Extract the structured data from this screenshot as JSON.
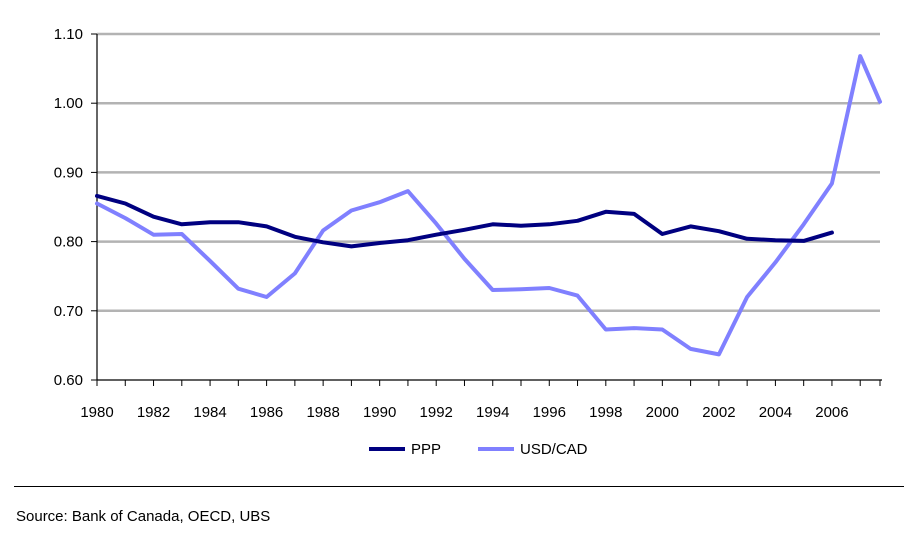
{
  "chart_data": {
    "type": "line",
    "title": "",
    "xlabel": "",
    "ylabel": "",
    "xlim": [
      1980,
      2007.7
    ],
    "ylim": [
      0.6,
      1.1
    ],
    "grid": true,
    "legend_position": "bottom",
    "y_ticks": [
      "0.60",
      "0.70",
      "0.80",
      "0.90",
      "1.00",
      "1.10"
    ],
    "x_ticks": [
      "1980",
      "1982",
      "1984",
      "1986",
      "1988",
      "1990",
      "1992",
      "1994",
      "1996",
      "1998",
      "2000",
      "2002",
      "2004",
      "2006"
    ],
    "series": [
      {
        "name": "PPP",
        "color": "#000080",
        "x": [
          1980,
          1981,
          1982,
          1983,
          1984,
          1985,
          1986,
          1987,
          1988,
          1989,
          1990,
          1991,
          1992,
          1993,
          1994,
          1995,
          1996,
          1997,
          1998,
          1999,
          2000,
          2001,
          2002,
          2003,
          2004,
          2005,
          2006
        ],
        "values": [
          0.866,
          0.855,
          0.836,
          0.825,
          0.828,
          0.828,
          0.822,
          0.807,
          0.799,
          0.793,
          0.798,
          0.802,
          0.81,
          0.817,
          0.825,
          0.823,
          0.825,
          0.83,
          0.843,
          0.84,
          0.811,
          0.822,
          0.815,
          0.804,
          0.802,
          0.801,
          0.813
        ]
      },
      {
        "name": "USD/CAD",
        "color": "#8080ff",
        "x": [
          1980,
          1981,
          1982,
          1983,
          1984,
          1985,
          1986,
          1987,
          1988,
          1989,
          1990,
          1991,
          1992,
          1993,
          1994,
          1995,
          1996,
          1997,
          1998,
          1999,
          2000,
          2001,
          2002,
          2003,
          2004,
          2005,
          2006,
          2007,
          2007.7
        ],
        "values": [
          0.855,
          0.834,
          0.81,
          0.811,
          0.772,
          0.732,
          0.72,
          0.754,
          0.816,
          0.845,
          0.857,
          0.873,
          0.826,
          0.775,
          0.73,
          0.731,
          0.733,
          0.722,
          0.673,
          0.675,
          0.673,
          0.645,
          0.637,
          0.72,
          0.77,
          0.825,
          0.884,
          1.068,
          1.002
        ]
      }
    ]
  },
  "source": "Source: Bank of Canada, OECD, UBS"
}
